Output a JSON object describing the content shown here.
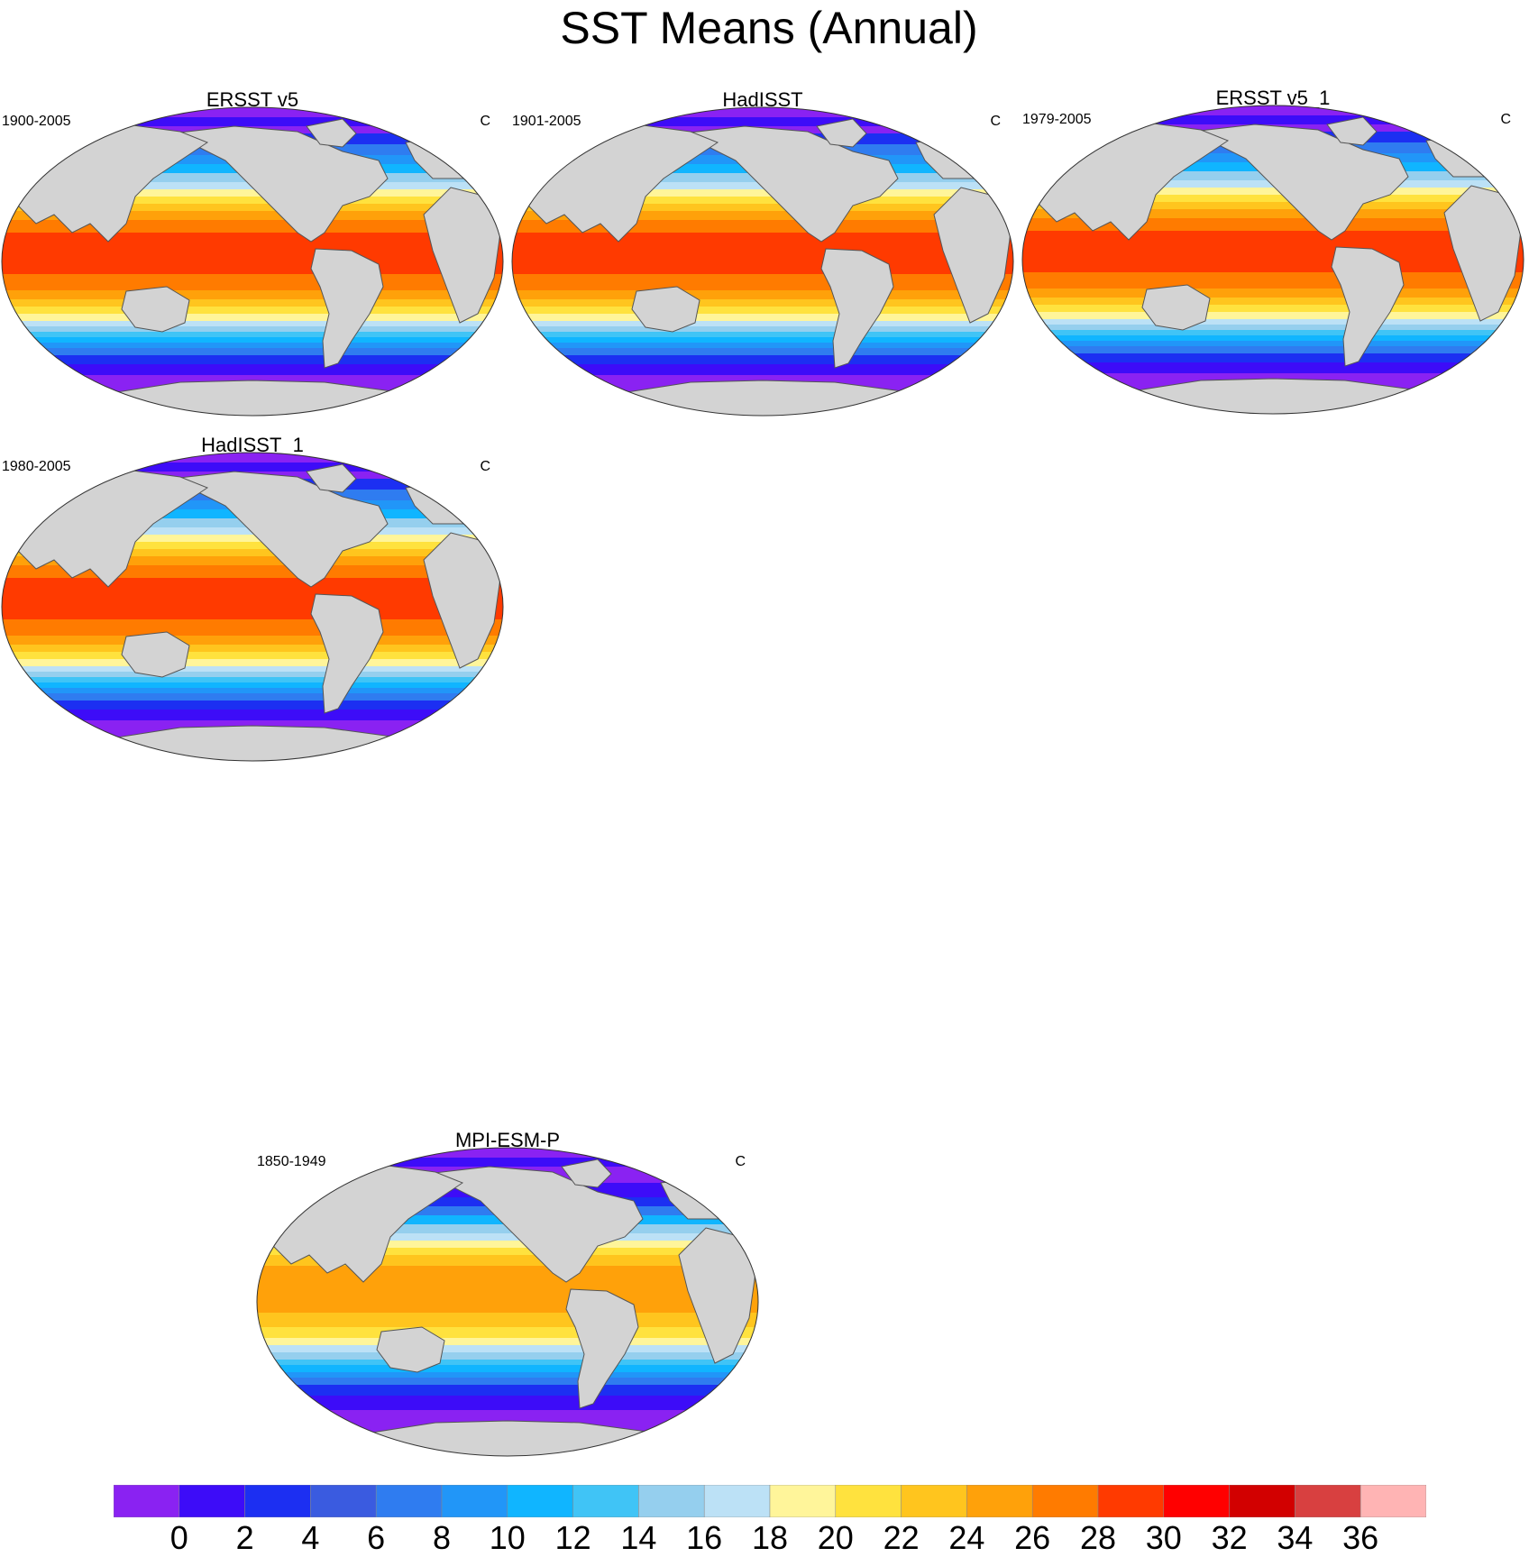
{
  "title": "SST Means (Annual)",
  "panels": [
    {
      "title": "ERSST v5",
      "period": "1900-2005",
      "units": "C",
      "variant": "obs"
    },
    {
      "title": "HadISST",
      "period": "1901-2005",
      "units": "C",
      "variant": "obs"
    },
    {
      "title": "ERSST v5_1",
      "period": "1979-2005",
      "units": "C",
      "variant": "obs"
    },
    {
      "title": "HadISST_1",
      "period": "1980-2005",
      "units": "C",
      "variant": "obs"
    },
    {
      "title": "MPI-ESM-P",
      "period": "1850-1949",
      "units": "C",
      "variant": "model"
    }
  ],
  "colorbar": {
    "colors": [
      "#8a22f2",
      "#3d0cf8",
      "#1c2ff2",
      "#3a5be0",
      "#2f7cf0",
      "#2196f8",
      "#10b5ff",
      "#40c4f6",
      "#95cfee",
      "#bce1f6",
      "#fff59a",
      "#ffe23e",
      "#ffc51e",
      "#ffa10a",
      "#ff7b00",
      "#ff3a00",
      "#ff0000",
      "#d20000",
      "#d84040",
      "#ffb4b4"
    ],
    "labels": [
      "0",
      "2",
      "4",
      "6",
      "8",
      "10",
      "12",
      "14",
      "16",
      "18",
      "20",
      "22",
      "24",
      "26",
      "28",
      "30",
      "32",
      "34",
      "36"
    ]
  }
}
